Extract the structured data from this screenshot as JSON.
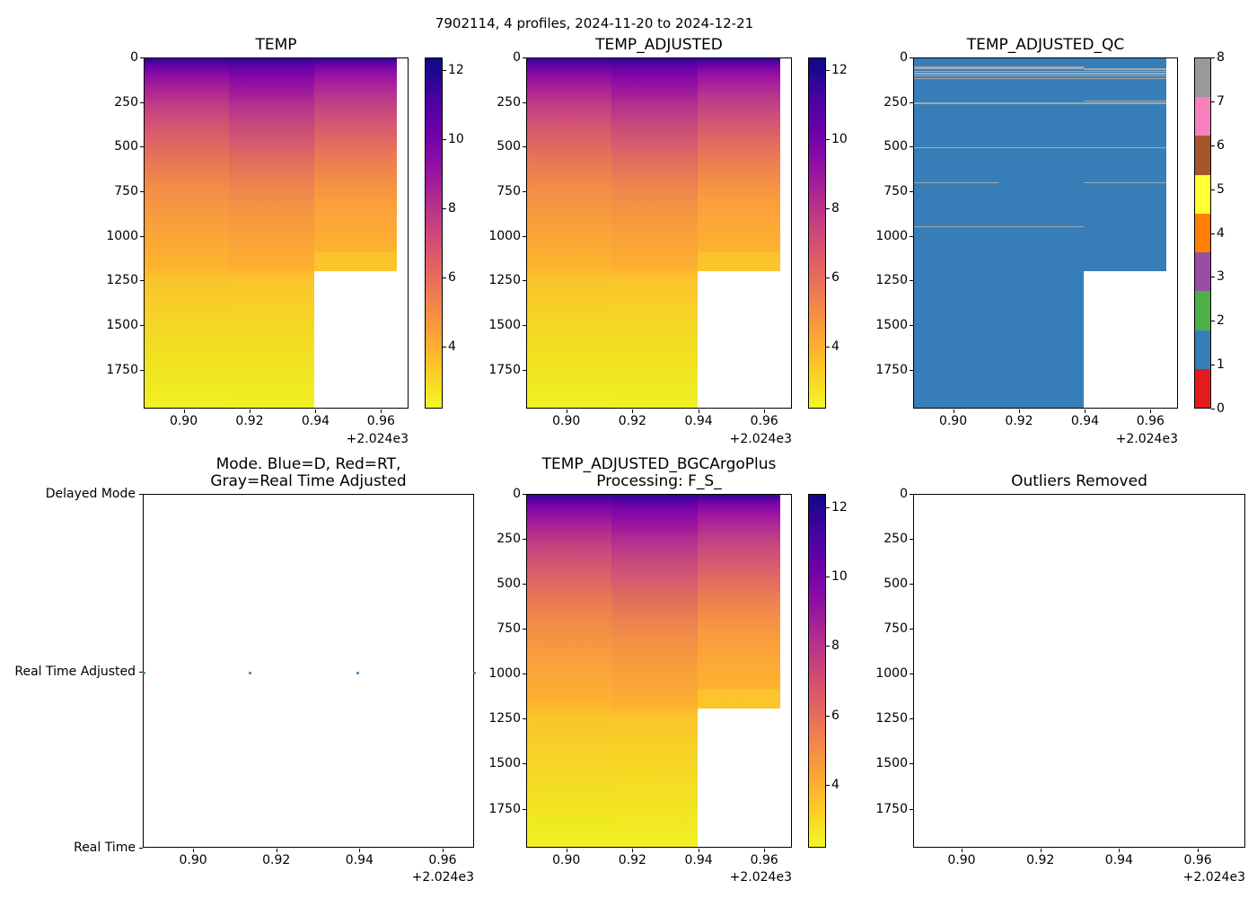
{
  "suptitle": "7902114, 4 profiles, 2024-11-20 to 2024-12-21",
  "panels": {
    "temp": {
      "title": "TEMP"
    },
    "temp_adjusted": {
      "title": "TEMP_ADJUSTED"
    },
    "temp_adjusted_qc": {
      "title": "TEMP_ADJUSTED_QC"
    },
    "mode": {
      "title_line1": "Mode. Blue=D, Red=RT,",
      "title_line2": "Gray=Real Time Adjusted",
      "yticks": [
        "Delayed Mode",
        "Real Time Adjusted",
        "Real Time"
      ]
    },
    "temp_adjusted_bgc": {
      "title_line1": "TEMP_ADJUSTED_BGCArgoPlus",
      "title_line2": "Processing: F_S_"
    },
    "outliers": {
      "title": "Outliers Removed"
    }
  },
  "xaxis": {
    "ticks": [
      "0.90",
      "0.92",
      "0.94",
      "0.96"
    ],
    "offset": "+2.024e3"
  },
  "depth_axis": {
    "ticks": [
      "0",
      "250",
      "500",
      "750",
      "1000",
      "1250",
      "1500",
      "1750"
    ]
  },
  "temp_colorbar": {
    "ticks": [
      "12",
      "10",
      "8",
      "6",
      "4"
    ]
  },
  "qc_colorbar": {
    "ticks": [
      "8",
      "7",
      "6",
      "5",
      "4",
      "3",
      "2",
      "1",
      "0"
    ]
  },
  "colors": {
    "qc_dominant_blue": "#377eb8",
    "qc_line_gray": "#a8a8a8",
    "mode_dot_blue": "#377eb8",
    "plasma_high": "#0d0887",
    "plasma_low": "#f0f921",
    "qc_palette_0_to_8": [
      "#e41a1c",
      "#377eb8",
      "#4daf4a",
      "#984ea3",
      "#ff7f00",
      "#ffff33",
      "#a65628",
      "#f781bf",
      "#999999"
    ]
  },
  "chart_data": [
    {
      "panel": "TEMP",
      "type": "heatmap",
      "x_profile_dates_decimal_year": [
        2024.888,
        2024.915,
        2024.942,
        2024.967
      ],
      "xlim": [
        2024.888,
        2024.968
      ],
      "xticks": [
        2024.9,
        2024.92,
        2024.94,
        2024.96
      ],
      "x_offset_label": "+2.024e3",
      "ylim": [
        1967,
        0
      ],
      "yticks": [
        0,
        250,
        500,
        750,
        1000,
        1250,
        1500,
        1750
      ],
      "colormap": "plasma_r",
      "value_range_c": [
        2.2,
        12.4
      ],
      "colorbar_ticks": [
        12,
        10,
        8,
        6,
        4
      ],
      "surface_temp_c": 12.2,
      "bottom_temp_c": 3.0,
      "column_max_depths_dbar": [
        1960,
        1960,
        1190
      ],
      "note": "warm purple surface layer cooling to yellow ~3C at depth; no data below ~1190 dbar after 2024.942; thin no-data strip right of 2024.965"
    },
    {
      "panel": "TEMP_ADJUSTED",
      "type": "heatmap",
      "x_profile_dates_decimal_year": [
        2024.888,
        2024.915,
        2024.942,
        2024.967
      ],
      "xlim": [
        2024.888,
        2024.968
      ],
      "xticks": [
        2024.9,
        2024.92,
        2024.94,
        2024.96
      ],
      "x_offset_label": "+2.024e3",
      "ylim": [
        1967,
        0
      ],
      "yticks": [
        0,
        250,
        500,
        750,
        1000,
        1250,
        1500,
        1750
      ],
      "colormap": "plasma_r",
      "value_range_c": [
        2.2,
        12.4
      ],
      "colorbar_ticks": [
        12,
        10,
        8,
        6,
        4
      ],
      "surface_temp_c": 12.2,
      "bottom_temp_c": 3.0,
      "column_max_depths_dbar": [
        1960,
        1960,
        1190
      ]
    },
    {
      "panel": "TEMP_ADJUSTED_QC",
      "type": "heatmap",
      "categorical": true,
      "x_profile_dates_decimal_year": [
        2024.888,
        2024.915,
        2024.942,
        2024.967
      ],
      "xticks": [
        2024.9,
        2024.92,
        2024.94,
        2024.96
      ],
      "x_offset_label": "+2.024e3",
      "ylim": [
        1967,
        0
      ],
      "yticks": [
        0,
        250,
        500,
        750,
        1000,
        1250,
        1500,
        1750
      ],
      "qc_scale": [
        0,
        1,
        2,
        3,
        4,
        5,
        6,
        7,
        8
      ],
      "qc_colors": [
        "#e41a1c",
        "#377eb8",
        "#4daf4a",
        "#984ea3",
        "#ff7f00",
        "#ffff33",
        "#a65628",
        "#f781bf",
        "#999999"
      ],
      "dominant_qc": 1,
      "qc8_band_depths_dbar": [
        45,
        69,
        82,
        95,
        109,
        235,
        248,
        497,
        694,
        939
      ],
      "column_max_depths_dbar": [
        1960,
        1960,
        1190
      ]
    },
    {
      "panel": "Mode",
      "type": "scatter",
      "title": "Mode. Blue=D, Red=RT, Gray=Real Time Adjusted",
      "y_categories": [
        "Real Time",
        "Real Time Adjusted",
        "Delayed Mode"
      ],
      "points": [
        {
          "x": 2024.888,
          "mode": "Real Time Adjusted"
        },
        {
          "x": 2024.915,
          "mode": "Real Time Adjusted"
        },
        {
          "x": 2024.942,
          "mode": "Real Time Adjusted"
        },
        {
          "x": 2024.967,
          "mode": "Real Time Adjusted"
        }
      ],
      "marker_color": "#377eb8"
    },
    {
      "panel": "TEMP_ADJUSTED_BGCArgoPlus Processing: F_S_",
      "type": "heatmap",
      "x_profile_dates_decimal_year": [
        2024.888,
        2024.915,
        2024.942,
        2024.967
      ],
      "xlim": [
        2024.888,
        2024.968
      ],
      "xticks": [
        2024.9,
        2024.92,
        2024.94,
        2024.96
      ],
      "x_offset_label": "+2.024e3",
      "ylim": [
        1967,
        0
      ],
      "yticks": [
        0,
        250,
        500,
        750,
        1000,
        1250,
        1500,
        1750
      ],
      "colormap": "plasma_r",
      "value_range_c": [
        2.2,
        12.4
      ],
      "colorbar_ticks": [
        12,
        10,
        8,
        6,
        4
      ],
      "surface_temp_c": 12.2,
      "bottom_temp_c": 3.0,
      "column_max_depths_dbar": [
        1960,
        1960,
        1190
      ]
    },
    {
      "panel": "Outliers Removed",
      "type": "scatter",
      "xticks": [
        2024.9,
        2024.92,
        2024.94,
        2024.96
      ],
      "x_offset_label": "+2.024e3",
      "yticks": [
        0,
        250,
        500,
        750,
        1000,
        1250,
        1500,
        1750
      ],
      "points": []
    }
  ]
}
